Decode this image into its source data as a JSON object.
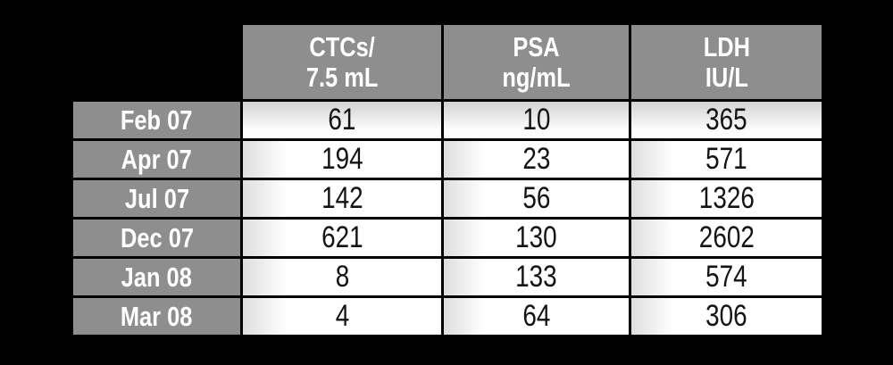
{
  "figure": {
    "background": "#000000"
  },
  "colors": {
    "cell_gray": "#8e8e8e",
    "border_black": "#000000",
    "cell_white": "#ffffff",
    "row1_gradient_top": "#d2d2d2",
    "header_text": "#ffffff",
    "value_text": "#141414"
  },
  "chart_data": {
    "type": "table",
    "title": "",
    "columns": [
      "CTCs/7.5 mL",
      "PSA ng/mL",
      "LDH IU/L"
    ],
    "columns_lines": [
      [
        "CTCs/",
        "7.5 mL"
      ],
      [
        "PSA",
        "ng/mL"
      ],
      [
        "LDH",
        "IU/L"
      ]
    ],
    "row_labels": [
      "Feb 07",
      "Apr 07",
      "Jul 07",
      "Dec 07",
      "Jan 08",
      "Mar 08"
    ],
    "rows": [
      [
        61,
        10,
        365
      ],
      [
        194,
        23,
        571
      ],
      [
        142,
        56,
        1326
      ],
      [
        621,
        130,
        2602
      ],
      [
        8,
        133,
        574
      ],
      [
        4,
        64,
        306
      ]
    ]
  }
}
